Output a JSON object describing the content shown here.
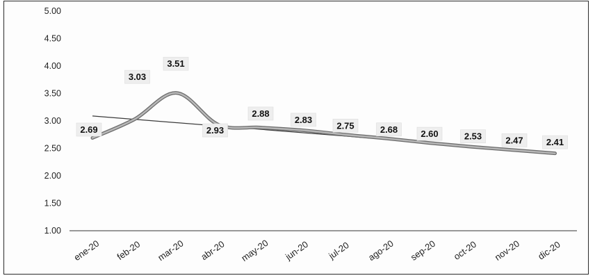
{
  "chart_data": {
    "type": "line",
    "title": "",
    "xlabel": "",
    "ylabel": "",
    "categories": [
      "ene-20",
      "feb-20",
      "mar-20",
      "abr-20",
      "may-20",
      "jun-20",
      "jul-20",
      "ago-20",
      "sep-20",
      "oct-20",
      "nov-20",
      "dic-20"
    ],
    "series": [
      {
        "values": [
          2.69,
          3.03,
          3.51,
          2.93,
          2.88,
          2.83,
          2.75,
          2.68,
          2.6,
          2.53,
          2.47,
          2.41
        ],
        "color": "#8a8a8a"
      }
    ],
    "data_labels": [
      "2.69",
      "3.03",
      "3.51",
      "2.93",
      "2.88",
      "2.83",
      "2.75",
      "2.68",
      "2.60",
      "2.53",
      "2.47",
      "2.41"
    ],
    "trendline": {
      "start": 3.09,
      "end": 2.42,
      "color": "#3a3a3a"
    },
    "yticks": [
      "1.00",
      "1.50",
      "2.00",
      "2.50",
      "3.00",
      "3.50",
      "4.00",
      "4.50",
      "5.00"
    ],
    "ylim": [
      1.0,
      5.0
    ],
    "grid": false,
    "legend": "none"
  }
}
